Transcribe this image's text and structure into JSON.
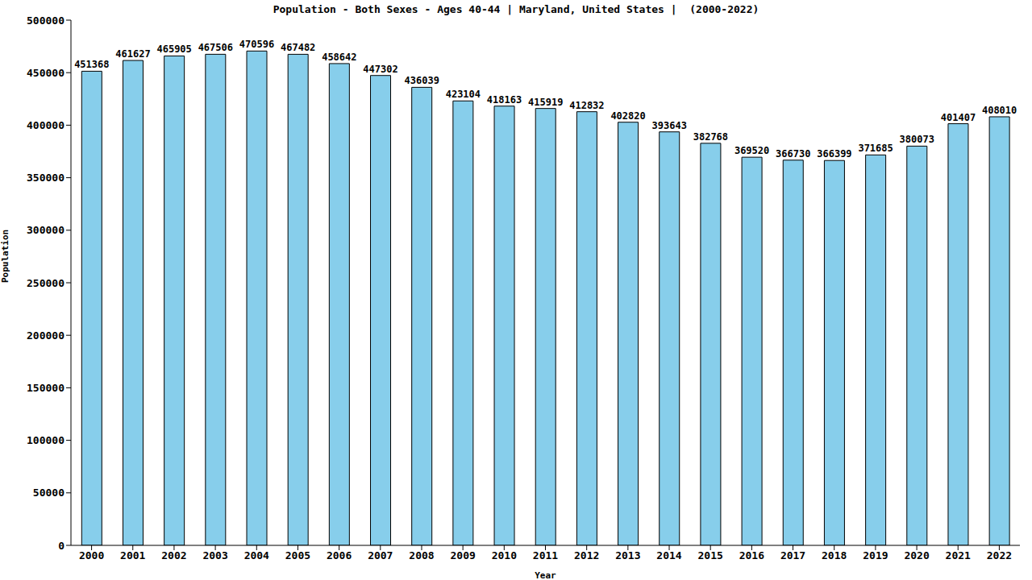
{
  "chart_data": {
    "type": "bar",
    "title": "Population - Both Sexes - Ages 40-44 | Maryland, United States |  (2000-2022)",
    "x_label": "Year",
    "y_label": "Population",
    "categories": [
      "2000",
      "2001",
      "2002",
      "2003",
      "2004",
      "2005",
      "2006",
      "2007",
      "2008",
      "2009",
      "2010",
      "2011",
      "2012",
      "2013",
      "2014",
      "2015",
      "2016",
      "2017",
      "2018",
      "2019",
      "2020",
      "2021",
      "2022"
    ],
    "values": [
      451368,
      461627,
      465905,
      467506,
      470596,
      467482,
      458642,
      447302,
      436039,
      423104,
      418163,
      415919,
      412832,
      402820,
      393643,
      382768,
      369520,
      366730,
      366399,
      371685,
      380073,
      401407,
      408010
    ],
    "color": "#87ceeb",
    "ylim": [
      0,
      500000
    ],
    "yticks": [
      0,
      50000,
      100000,
      150000,
      200000,
      250000,
      300000,
      350000,
      400000,
      450000,
      500000
    ],
    "grid": false,
    "data_labels": true
  }
}
